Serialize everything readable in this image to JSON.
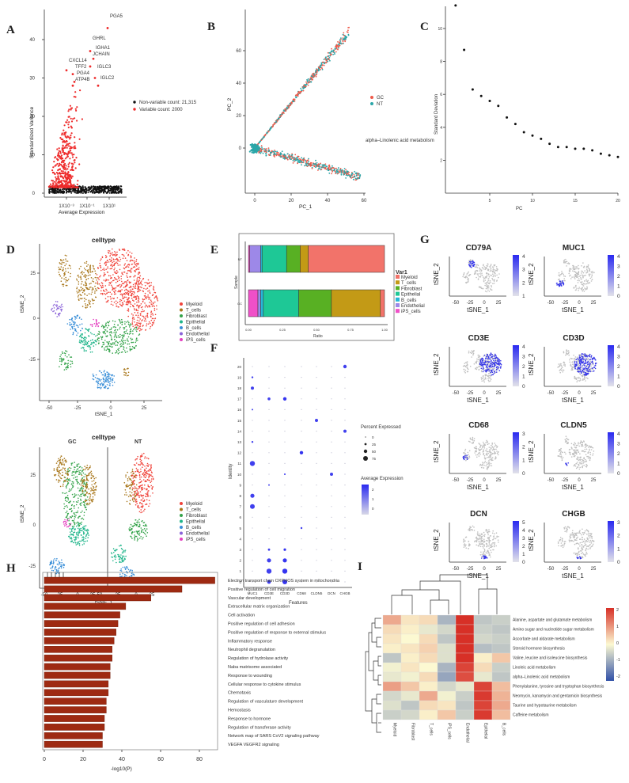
{
  "panels": [
    "A",
    "B",
    "C",
    "D",
    "E",
    "F",
    "G",
    "H",
    "I"
  ],
  "colors": {
    "red": "#ee2b2b",
    "teal": "#2aa6a8",
    "black": "#111111",
    "dark_red": "#9e2a12",
    "blue": "#3a3af2"
  },
  "panel_a": {
    "type": "scatter",
    "ylabel": "Standardized Variance",
    "xlabel": "Average Expression",
    "yticks": [
      0,
      10,
      20,
      30,
      40
    ],
    "xticks": [
      "1X10⁻³",
      "1X10⁻¹",
      "1X10¹"
    ],
    "genes": [
      "PGA5",
      "GHRL",
      "IGHA1",
      "JCHAIN",
      "CXCL14",
      "IGLC3",
      "TFF2",
      "PGA4",
      "ATP4B",
      "IGLC2"
    ],
    "legend": [
      {
        "label": "Non-variable count: 21,315",
        "color": "#111111"
      },
      {
        "label": "Variable count: 2000",
        "color": "#ee2b2b"
      }
    ]
  },
  "panel_b": {
    "type": "scatter",
    "xlabel": "PC_1",
    "ylabel": "PC_2",
    "xticks": [
      0,
      20,
      40,
      60
    ],
    "yticks": [
      0,
      20,
      40,
      60
    ],
    "legend": [
      {
        "label": "GC",
        "color": "#ee5a4a"
      },
      {
        "label": "NT",
        "color": "#2aa6a8"
      }
    ],
    "annotation": "alpha–Linolenic acid metabolism"
  },
  "panel_c": {
    "type": "scatter",
    "xlabel": "PC",
    "ylabel": "Standard Deviation",
    "xticks": [
      5,
      10,
      15,
      20
    ],
    "yticks": [
      2,
      4,
      6,
      8,
      10
    ],
    "x": [
      1,
      2,
      3,
      4,
      5,
      6,
      7,
      8,
      9,
      10,
      11,
      12,
      13,
      14,
      15,
      16,
      17,
      18,
      19,
      20
    ],
    "y": [
      11.4,
      8.7,
      6.3,
      5.9,
      5.6,
      5.3,
      4.6,
      4.2,
      3.7,
      3.5,
      3.3,
      3.0,
      2.8,
      2.8,
      2.7,
      2.7,
      2.6,
      2.4,
      2.3,
      2.2
    ]
  },
  "panel_d": {
    "title": "celltype",
    "xlabel": "tSNE_1",
    "ylabel": "tSNE_2",
    "xticks": [
      -50,
      -25,
      0,
      25
    ],
    "yticks": [
      -25,
      0,
      25
    ],
    "bottom_title": "celltype",
    "group_labels": [
      "GC",
      "NT"
    ],
    "bottom_xticks": [
      -50,
      -25,
      0,
      25,
      50,
      -25,
      0,
      25
    ],
    "legend": [
      {
        "label": "Myeloid",
        "color": "#f0433a"
      },
      {
        "label": "T_cells",
        "color": "#a8761a"
      },
      {
        "label": "Fibroblast",
        "color": "#34a34a"
      },
      {
        "label": "Epithelial",
        "color": "#1fb58a"
      },
      {
        "label": "B_cells",
        "color": "#3a8fd8"
      },
      {
        "label": "Endothelial",
        "color": "#8a62d8"
      },
      {
        "label": "iPS_cells",
        "color": "#e43fc0"
      }
    ]
  },
  "panel_e": {
    "type": "stacked_bar",
    "xlabel": "Ratio",
    "ylabel": "Sample",
    "categories": [
      "NT",
      "GC"
    ],
    "xticks": [
      "0.00",
      "0.25",
      "0.50",
      "0.75",
      "1.00"
    ],
    "legend_title": "Var1",
    "series": [
      {
        "name": "Myeloid",
        "color": "#f2736a",
        "values": [
          0.56,
          0.03
        ]
      },
      {
        "name": "T_cells",
        "color": "#c39a16",
        "values": [
          0.06,
          0.36
        ]
      },
      {
        "name": "Fibroblast",
        "color": "#58b023",
        "values": [
          0.1,
          0.24
        ]
      },
      {
        "name": "Epithelial",
        "color": "#1ec896",
        "values": [
          0.18,
          0.26
        ]
      },
      {
        "name": "B_cells",
        "color": "#26b8d8",
        "values": [
          0.01,
          0.02
        ]
      },
      {
        "name": "Endothelial",
        "color": "#9d88e8",
        "values": [
          0.08,
          0.02
        ]
      },
      {
        "name": "iPS_cells",
        "color": "#f050c8",
        "values": [
          0.01,
          0.07
        ]
      }
    ]
  },
  "panel_f": {
    "type": "dotplot",
    "xlabel": "Features",
    "ylabel": "Identity",
    "features": [
      "MUC1",
      "CD3E",
      "CD3D",
      "CD68",
      "CLDN5",
      "DCN",
      "CHGB"
    ],
    "identities": [
      "0",
      "1",
      "2",
      "3",
      "4",
      "5",
      "6",
      "7",
      "8",
      "9",
      "10",
      "11",
      "12",
      "13",
      "14",
      "15",
      "16",
      "17",
      "18",
      "19",
      "20"
    ],
    "size_legend_title": "Percent Expressed",
    "size_legend": [
      0,
      25,
      50,
      75
    ],
    "color_legend_title": "Average Expression",
    "color_legend": [
      2,
      1,
      0
    ]
  },
  "panel_g": {
    "xlabel": "tSNE_1",
    "ylabel": "tSNE_2",
    "xticks": [
      -50,
      -25,
      0,
      25
    ],
    "genes": [
      {
        "name": "CD79A",
        "scale": [
          1,
          2,
          3,
          4
        ]
      },
      {
        "name": "MUC1",
        "scale": [
          0,
          1,
          2,
          3,
          4
        ]
      },
      {
        "name": "CD3E",
        "scale": [
          0,
          1,
          2,
          3,
          4
        ]
      },
      {
        "name": "CD3D",
        "scale": [
          0,
          1,
          2,
          3,
          4
        ]
      },
      {
        "name": "CD68",
        "scale": [
          0,
          1,
          2,
          3
        ]
      },
      {
        "name": "CLDN5",
        "scale": [
          0,
          1,
          2,
          3,
          4
        ]
      },
      {
        "name": "DCN",
        "scale": [
          0,
          1,
          2,
          3,
          4,
          5
        ]
      },
      {
        "name": "CHGB",
        "scale": [
          0,
          1,
          2,
          3
        ]
      }
    ]
  },
  "panel_h": {
    "type": "bar",
    "xlabel": "-log10(P)",
    "xticks": [
      0,
      20,
      40,
      60,
      80
    ],
    "categories": [
      "Electron transport chain OXPHOS system in mitochondria",
      "Positive regulation of cell migration",
      "Vascular development",
      "Extracellular matrix organization",
      "Cell activation",
      "Positive regulation of cell adhesion",
      "Positive regulation of response to external stimulus",
      "Inflammatory response",
      "Neutrophil degranulation",
      "Regulation of hydrolase activity",
      "Naba matrisome associated",
      "Response to wounding",
      "Cellular response to cytokine stimulus",
      "Chemotaxis",
      "Regulation of vasculature development",
      "Hemostasis",
      "Response to hormone",
      "Regulation of transferase activity",
      "Network map of SARS CoV2 signaling pathway",
      "VEGFA VEGFR2 signaling"
    ],
    "values": [
      88,
      71,
      55,
      42,
      39,
      38,
      37,
      36,
      35,
      35,
      34,
      34,
      33,
      33,
      32,
      32,
      31,
      31,
      30,
      30
    ]
  },
  "panel_i": {
    "type": "heatmap",
    "columns": [
      "Myeloid",
      "Fibroblast",
      "T_cells",
      "iPS_cells",
      "Endothelial",
      "Epithelial",
      "B_cells"
    ],
    "rows": [
      "Alanine, aspartate and glutamate metabolism",
      "Amino sugar and nucleotide sugar metabolism",
      "Ascorbate and aldarate metabolism",
      "Steroid hormone biosynthesis",
      "Valine, leucine and isoleucine biosynthesis",
      "Linoleic acid metabolism",
      "alpha–Linolenic acid metabolism",
      "Phenylalanine, tyrosine and tryptophan biosynthesis",
      "Neomycin, kanamycin and gentamicin biosynthesis",
      "Taurine and hypotaurine metabolism",
      "Caffeine metabolism"
    ],
    "values": [
      [
        0.8,
        0.2,
        0.3,
        -0.8,
        2.0,
        -0.6,
        -0.5
      ],
      [
        0.3,
        0.1,
        -0.2,
        -0.4,
        2.0,
        -0.5,
        -0.6
      ],
      [
        0.2,
        0.0,
        0.3,
        -0.6,
        2.0,
        -0.4,
        -0.5
      ],
      [
        0.1,
        0.2,
        0.4,
        -0.3,
        2.0,
        -0.7,
        -0.6
      ],
      [
        -0.6,
        0.1,
        0.3,
        -0.3,
        2.0,
        0.1,
        0.5
      ],
      [
        -0.1,
        0.2,
        0.0,
        -0.8,
        1.8,
        0.3,
        -0.5
      ],
      [
        -0.2,
        -0.1,
        0.3,
        -1.0,
        1.7,
        -0.2,
        -0.6
      ],
      [
        0.9,
        0.5,
        0.1,
        -0.4,
        -0.2,
        1.8,
        0.6
      ],
      [
        -0.4,
        -0.2,
        0.8,
        -0.1,
        -0.5,
        1.9,
        0.7
      ],
      [
        -0.3,
        -0.6,
        0.3,
        0.2,
        -0.6,
        1.8,
        0.8
      ],
      [
        -0.5,
        -0.4,
        0.1,
        0.5,
        -0.5,
        1.9,
        0.6
      ]
    ],
    "scale_ticks": [
      2,
      1,
      0,
      -1,
      -2
    ]
  }
}
